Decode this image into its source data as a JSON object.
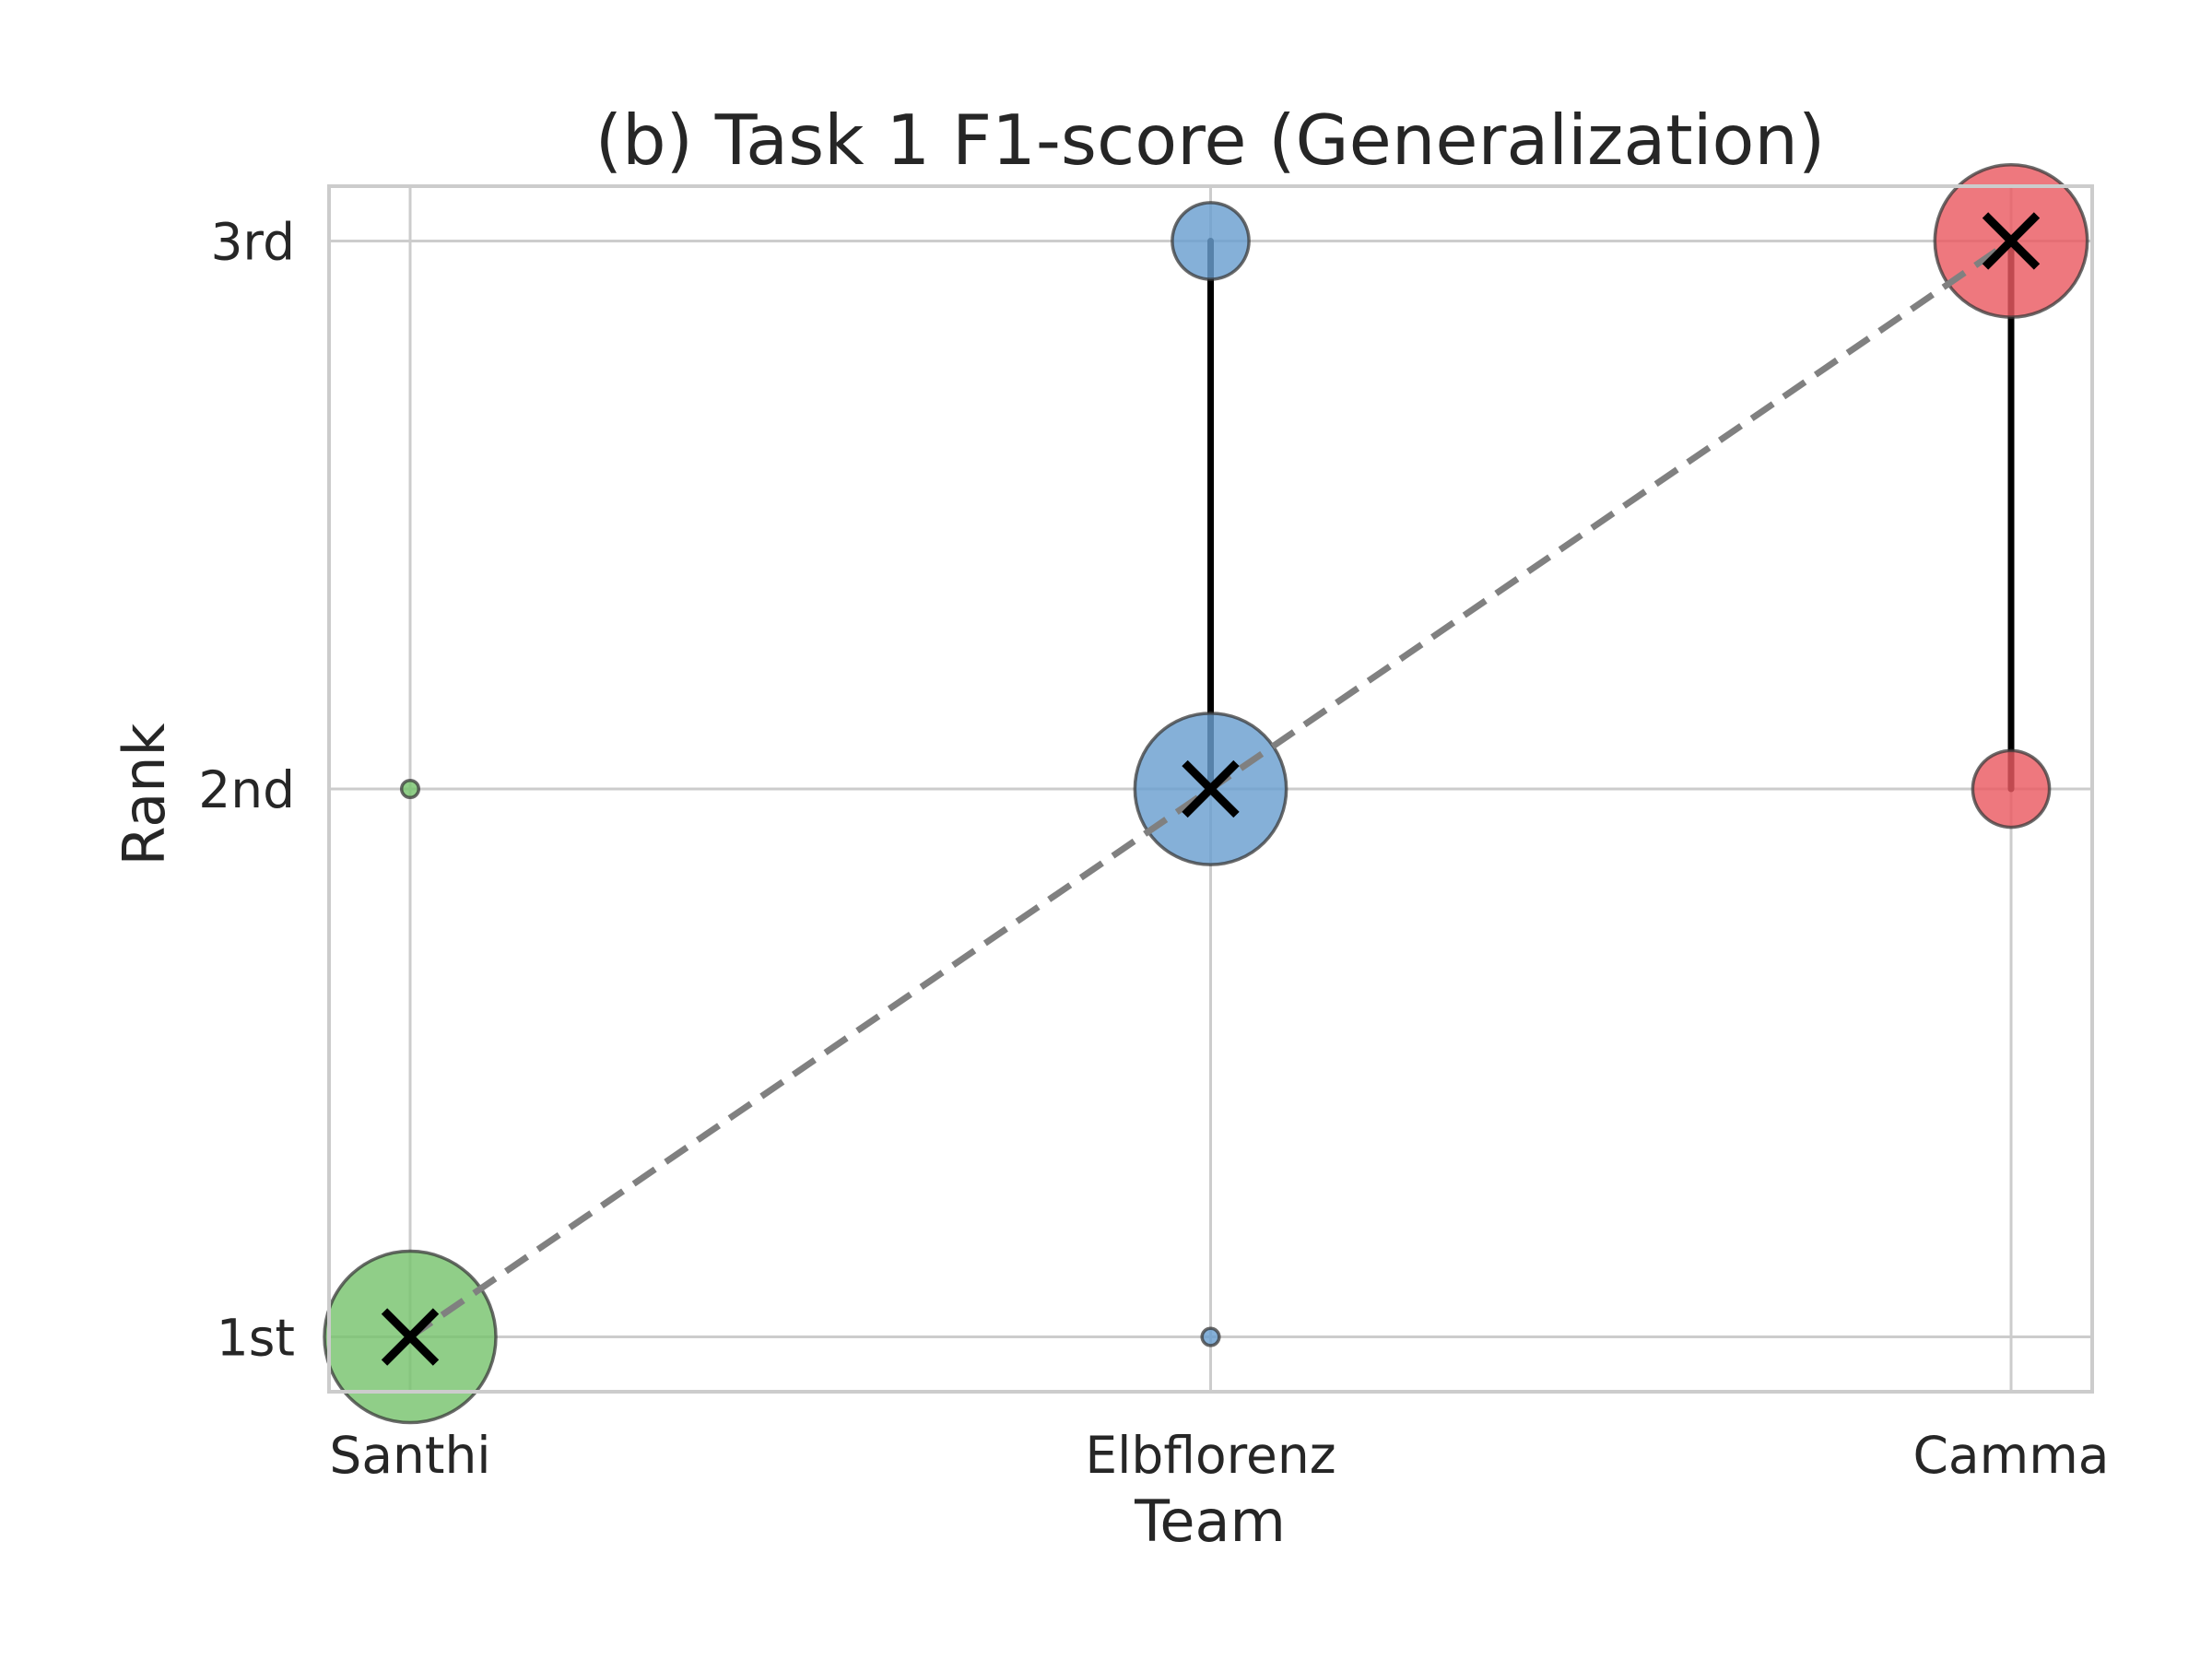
{
  "chart_data": {
    "type": "scatter",
    "title": "(b) Task 1 F1-score (Generalization)",
    "xlabel": "Team",
    "ylabel": "Rank",
    "categories": [
      "Santhi",
      "Elbflorenz",
      "Camma"
    ],
    "y_ticks": [
      {
        "value": 1,
        "label": "1st"
      },
      {
        "value": 2,
        "label": "2nd"
      },
      {
        "value": 3,
        "label": "3rd"
      }
    ],
    "ylim": [
      0.9,
      3.1
    ],
    "grid": true,
    "series": [
      {
        "team": "Santhi",
        "color": "#77c36e",
        "points": [
          {
            "rank": 1,
            "weight": 1.0
          },
          {
            "rank": 2,
            "weight": 0.01
          }
        ],
        "rank_range": [
          1,
          1
        ],
        "mean_rank": 1
      },
      {
        "team": "Elbflorenz",
        "color": "#6a9fcf",
        "points": [
          {
            "rank": 2,
            "weight": 0.78
          },
          {
            "rank": 3,
            "weight": 0.2
          },
          {
            "rank": 1,
            "weight": 0.01
          }
        ],
        "rank_range": [
          2,
          3
        ],
        "mean_rank": 2
      },
      {
        "team": "Camma",
        "color": "#ea5a62",
        "points": [
          {
            "rank": 3,
            "weight": 0.79
          },
          {
            "rank": 2,
            "weight": 0.2
          }
        ],
        "rank_range": [
          2,
          3
        ],
        "mean_rank": 3
      }
    ],
    "mean_line": {
      "style": "dashed",
      "color": "#808080"
    }
  }
}
